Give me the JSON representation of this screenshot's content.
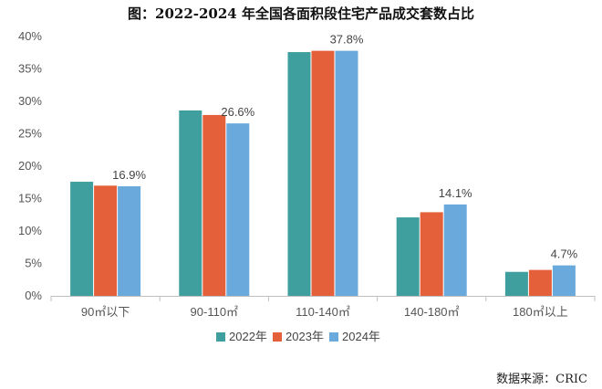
{
  "chart_data": {
    "type": "bar",
    "title": "图：2022-2024 年全国各面积段住宅产品成交套数占比",
    "categories": [
      "90㎡以下",
      "90-110㎡",
      "110-140㎡",
      "140-180㎡",
      "180㎡以上"
    ],
    "series": [
      {
        "name": "2022年",
        "color": "#3f9e9e",
        "values": [
          17.6,
          28.6,
          37.6,
          12.1,
          3.7
        ]
      },
      {
        "name": "2023年",
        "color": "#e4603a",
        "values": [
          17.0,
          27.9,
          37.8,
          12.9,
          4.0
        ]
      },
      {
        "name": "2024年",
        "color": "#6aa9db",
        "values": [
          16.9,
          26.6,
          37.8,
          14.1,
          4.7
        ]
      }
    ],
    "data_labels": [
      {
        "category_index": 0,
        "series_index": 2,
        "text": "16.9%"
      },
      {
        "category_index": 1,
        "series_index": 2,
        "text": "26.6%"
      },
      {
        "category_index": 2,
        "series_index": 2,
        "text": "37.8%"
      },
      {
        "category_index": 3,
        "series_index": 2,
        "text": "14.1%"
      },
      {
        "category_index": 4,
        "series_index": 2,
        "text": "4.7%"
      }
    ],
    "y_ticks": [
      {
        "value": 0,
        "label": "0%"
      },
      {
        "value": 5,
        "label": "5%"
      },
      {
        "value": 10,
        "label": "10%"
      },
      {
        "value": 15,
        "label": "15%"
      },
      {
        "value": 20,
        "label": "20%"
      },
      {
        "value": 25,
        "label": "25%"
      },
      {
        "value": 30,
        "label": "30%"
      },
      {
        "value": 35,
        "label": "35%"
      },
      {
        "value": 40,
        "label": "40%"
      }
    ],
    "ylim": [
      0,
      40
    ],
    "grid": false,
    "legend_position": "bottom-center",
    "source": "数据来源：CRIC"
  }
}
